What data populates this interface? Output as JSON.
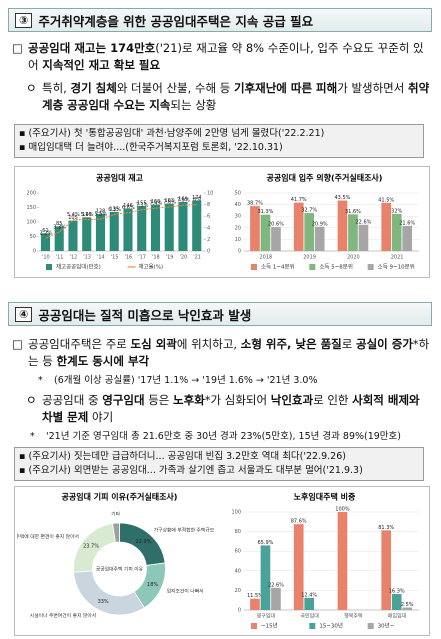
{
  "document": {
    "section1": {
      "number": "③",
      "title": "주거취약계층을 위한 공공임대주택은 지속 공급 필요",
      "items": [
        {
          "marker": "□",
          "runs": [
            {
              "text": "공공임대 재고는 174만호",
              "bold": true
            },
            {
              "text": "('21)로 재고율 약 8% 수준이나, 입주 수요도 꾸준히 있어 "
            },
            {
              "text": "지속적인 재고 확보 필요",
              "bold": true
            }
          ]
        },
        {
          "marker": "ㅇ",
          "runs": [
            {
              "text": "특히, "
            },
            {
              "text": "경기 침체",
              "bold": true
            },
            {
              "text": "와 더불어 산불, 수해 등 "
            },
            {
              "text": "기후재난에 따른 피해",
              "bold": true
            },
            {
              "text": "가 발생하면서 "
            },
            {
              "text": "취약계층 공공임대 수요는 지속",
              "bold": true
            },
            {
              "text": "되는 상황"
            }
          ]
        }
      ],
      "news": [
        "▪ (주요기사) 첫 '통합공공임대' 과천·남양주에 2만명 넘게 몰렸다('22.2.21)",
        "▪ 매입임대택 더 늘려야....(한국주거복지포럼 토론회, '22.10.31)"
      ]
    },
    "section2": {
      "number": "④",
      "title": "공공임대는 질적 미흡으로 낙인효과 발생",
      "items": [
        {
          "marker": "□",
          "runs": [
            {
              "text": "공공임대주택은 주로 "
            },
            {
              "text": "도심 외곽",
              "bold": true
            },
            {
              "text": "에 위치하고, "
            },
            {
              "text": "소형 위주, 낮은 품질",
              "bold": true
            },
            {
              "text": "로 "
            },
            {
              "text": "공실이 증가",
              "bold": true
            },
            {
              "text": "*하는 등 "
            },
            {
              "text": "한계도 동시에 부각",
              "bold": true
            }
          ]
        },
        {
          "marker": "*",
          "runs": [
            {
              "text": "(6개월 이상 공실률) '17년 1.1% → '19년 1.6% → '21년 3.0%"
            }
          ]
        },
        {
          "marker": "ㅇ",
          "runs": [
            {
              "text": "공공임대 중 "
            },
            {
              "text": "영구임대",
              "bold": true
            },
            {
              "text": " 등은 "
            },
            {
              "text": "노후화",
              "bold": true
            },
            {
              "text": "*가 심화되어 "
            },
            {
              "text": "낙인효과",
              "bold": true
            },
            {
              "text": "로 인한 "
            },
            {
              "text": "사회적 배제와 차별 문제",
              "bold": true
            },
            {
              "text": " 야기"
            }
          ]
        },
        {
          "marker": "*",
          "runs": [
            {
              "text": "'21년 기준 영구임대 총 21.6만호 중 30년 경과 23%(5만호), 15년 경과 89%(19만호)"
            }
          ]
        }
      ],
      "news": [
        "▪ (주요기사) 짓는데만 급급하더니... 공공임대 빈집 3.2만호 역대 최다('22.9.26)",
        "▪ (주요기사) 외면받는 공공임대... 가족과 살기엔 좁고 서울과도 대부분 멀어('21.9.3)"
      ]
    }
  },
  "chart_data": [
    {
      "type": "bar",
      "title": "공공임대 재고",
      "categories": [
        "'10",
        "'11",
        "'12",
        "'13",
        "'14",
        "'15",
        "'16",
        "'17",
        "'18",
        "'19",
        "'20",
        "'21"
      ],
      "series": [
        {
          "name": "재고공공임대(만호)",
          "color": "#2e8b7a",
          "values": [
            61,
            85,
            105,
            116,
            128,
            135,
            146,
            155,
            160,
            163,
            169,
            174
          ]
        },
        {
          "name": "재고율(%)",
          "type": "line",
          "axis": "y2",
          "color": "#f08a3c",
          "values": [
            2.2,
            3.3,
            5.4,
            5.4,
            5.5,
            6.3,
            6.6,
            7.1,
            7.4,
            7.6,
            7.9,
            8
          ],
          "value_labels": [
            "2.2%",
            "3.3%",
            "5.4%",
            "5.4%",
            "5.5%",
            "6.3%",
            "6.6%",
            "7.1%",
            "7.4%",
            "7.6%",
            "7.9%",
            "8%"
          ]
        }
      ],
      "ylim": [
        0,
        200
      ],
      "yticks": [
        0,
        50,
        100,
        150,
        200
      ],
      "y2lim": [
        0,
        10
      ],
      "y2ticks": [
        0,
        2,
        4,
        6,
        8,
        10
      ],
      "grid": false
    },
    {
      "type": "bar",
      "title": "공공임대 입주 의향(주거실태조사)",
      "categories": [
        "2018",
        "2019",
        "2020",
        "2021"
      ],
      "series": [
        {
          "name": "소득 1~4분위",
          "color": "#e8826a",
          "values": [
            38.7,
            41.7,
            43.5,
            41.5
          ],
          "value_labels": [
            "38.7%",
            "41.7%",
            "43.5%",
            "41.5%"
          ]
        },
        {
          "name": "소득 5~8분위",
          "color": "#7fb77e",
          "values": [
            31.3,
            32.7,
            31.6,
            32
          ],
          "value_labels": [
            "31.3%",
            "32.7%",
            "31.6%",
            "32%"
          ]
        },
        {
          "name": "소득 9~10분위",
          "color": "#a6a6a6",
          "values": [
            20.6,
            20.9,
            22.6,
            21.6
          ],
          "value_labels": [
            "20.6%",
            "20.9%",
            "22.6%",
            "21.6%"
          ]
        }
      ],
      "ylim": [
        0,
        50
      ],
      "yticks": [
        0,
        10,
        20,
        30,
        40,
        50
      ],
      "grid": true
    },
    {
      "type": "pie",
      "title": "공공임대 기피 이유(주거실태조사)",
      "center_label": "공공임대주택 기피 이유",
      "categories": [
        "가구상황에 부적합한 주택규모",
        "입지조건이 나빠서",
        "시설이나 주변여건이 좋지 않아서",
        "임대주택에 대한 편견이 좋지 않아서",
        "기타"
      ],
      "values": [
        22.9,
        18,
        33,
        23.7,
        2.4
      ],
      "value_labels": [
        "22.9%",
        "18%",
        "33%",
        "23.7%",
        null
      ],
      "colors": [
        "#2f6f6a",
        "#8cc7b8",
        "#c9d6df",
        "#d9ead3",
        "#9e9e9e"
      ]
    },
    {
      "type": "bar",
      "title": "노후임대주택 비중",
      "categories": [
        "영구임대",
        "국민임대",
        "행복주택",
        "매입임대"
      ],
      "series": [
        {
          "name": "~15년",
          "color": "#e8826a",
          "values": [
            11.5,
            87.6,
            100,
            81.3
          ],
          "value_labels": [
            "11.5%",
            "87.6%",
            "100%",
            "81.3%"
          ]
        },
        {
          "name": "15~30년",
          "color": "#4aa39a",
          "values": [
            65.9,
            12.4,
            null,
            16.3
          ],
          "value_labels": [
            "65.9%",
            "12.4%",
            null,
            "16.3%"
          ]
        },
        {
          "name": "30년~",
          "color": "#a6a6a6",
          "values": [
            22.6,
            null,
            null,
            2.5
          ],
          "value_labels": [
            "22.6%",
            null,
            null,
            "2.5%"
          ]
        }
      ],
      "ylim": [
        0,
        100
      ],
      "yticks": [
        0,
        20,
        40,
        60,
        80,
        100
      ],
      "grid": true
    }
  ]
}
